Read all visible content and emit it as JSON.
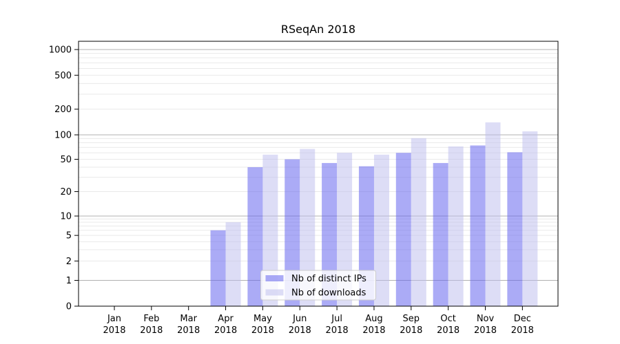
{
  "chart_data": {
    "type": "bar",
    "title": "RSeqAn 2018",
    "categories": [
      "Jan 2018",
      "Feb 2018",
      "Mar 2018",
      "Apr 2018",
      "May 2018",
      "Jun 2018",
      "Jul 2018",
      "Aug 2018",
      "Sep 2018",
      "Oct 2018",
      "Nov 2018",
      "Dec 2018"
    ],
    "series": [
      {
        "name": "Nb of distinct IPs",
        "key": "ips",
        "color": "rgba(102,102,238,0.55)",
        "values": [
          0,
          0,
          0,
          6,
          40,
          50,
          45,
          41,
          60,
          45,
          74,
          61
        ]
      },
      {
        "name": "Nb of downloads",
        "key": "downloads",
        "color": "rgba(187,187,238,0.5)",
        "values": [
          0,
          0,
          0,
          8,
          57,
          67,
          60,
          57,
          91,
          72,
          140,
          110
        ]
      }
    ],
    "xlabel": "",
    "ylabel": "",
    "yscale": "symlog",
    "ylim": [
      0,
      1250
    ],
    "yticks": [
      0,
      1,
      2,
      5,
      10,
      20,
      50,
      100,
      200,
      500,
      1000
    ],
    "yticklabels": [
      "0",
      "1",
      "2",
      "5",
      "10",
      "20",
      "50",
      "100",
      "200",
      "500",
      "1000"
    ],
    "grid": true,
    "legend": {
      "position": "lower center",
      "entries": [
        "Nb of distinct IPs",
        "Nb of downloads"
      ]
    },
    "colors": {
      "bar_ips": "rgba(102,102,238,0.55)",
      "bar_downloads": "rgba(187,187,238,0.5)",
      "grid_major": "#b0b0b0",
      "grid_minor": "#e9e9e9",
      "spine": "#000000",
      "tick": "#000000",
      "text": "#000000",
      "legend_border": "#cccccc",
      "legend_bg": "rgba(255,255,255,0.8)",
      "background": "#ffffff"
    }
  }
}
